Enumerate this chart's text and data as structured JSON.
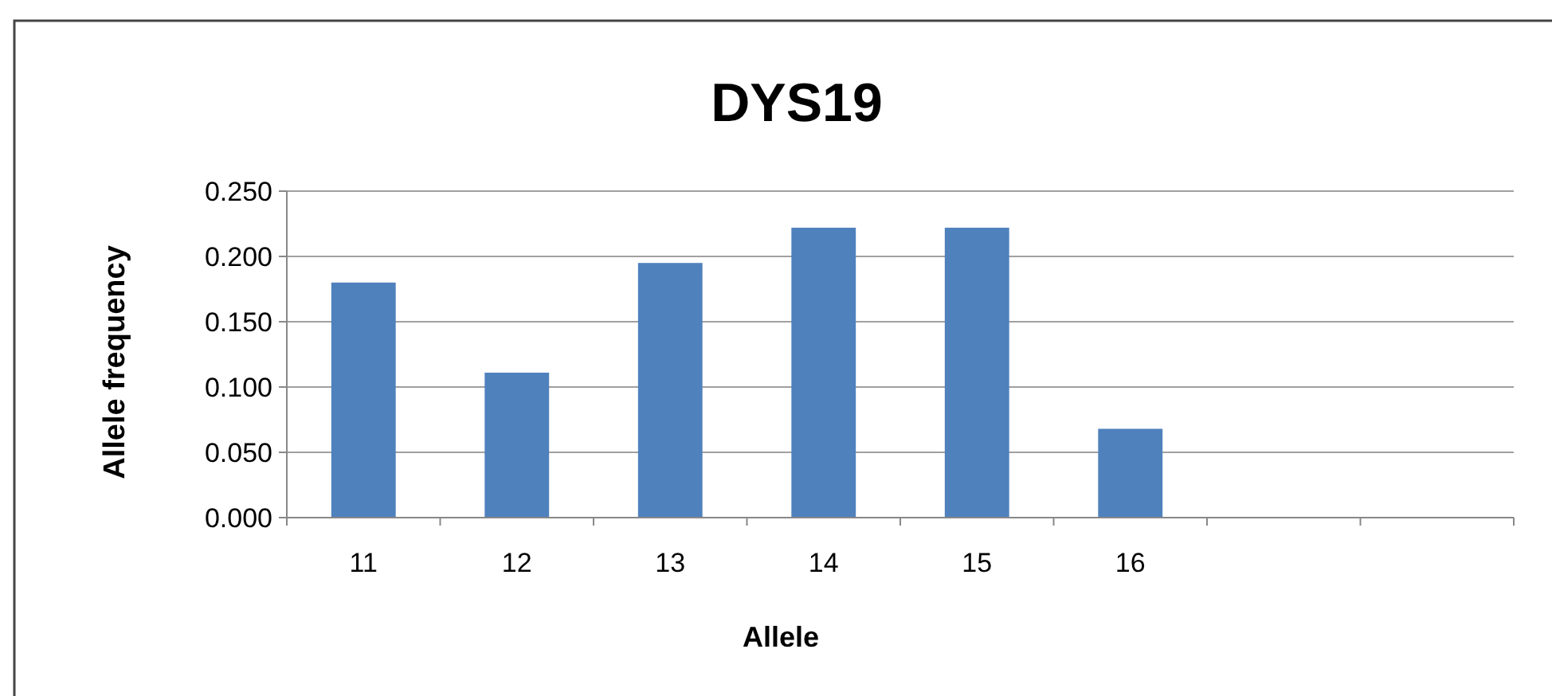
{
  "chart_data": {
    "type": "bar",
    "title": "DYS19",
    "xlabel": "Allele",
    "ylabel": "Allele frequency",
    "categories": [
      "11",
      "12",
      "13",
      "14",
      "15",
      "16",
      null,
      null
    ],
    "values": [
      0.18,
      0.111,
      0.195,
      0.222,
      0.222,
      0.068,
      null,
      null
    ],
    "color": "#4f81bd",
    "ylim": [
      0,
      0.25
    ],
    "yticks": [
      {
        "value": 0,
        "label": "0.000"
      },
      {
        "value": 0.05,
        "label": "0.050"
      },
      {
        "value": 0.1,
        "label": "0.100"
      },
      {
        "value": 0.15,
        "label": "0.150"
      },
      {
        "value": 0.2,
        "label": "0.200"
      },
      {
        "value": 0.25,
        "label": "0.250"
      }
    ],
    "grid": "y"
  }
}
